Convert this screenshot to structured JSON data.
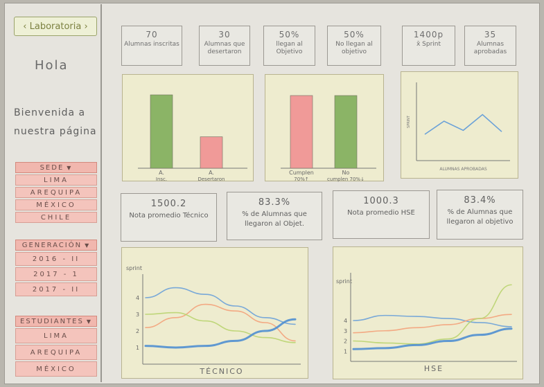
{
  "sidebar": {
    "brand": "Laboratoria",
    "greeting": "Hola",
    "welcome": "Bienvenida a nuestra página",
    "sede": {
      "title": "SEDE",
      "items": [
        "LIMA",
        "AREQUIPA",
        "MÉXICO",
        "CHILE"
      ]
    },
    "generacion": {
      "title": "GENERACIÓN",
      "items": [
        "2016 - II",
        "2017 - 1",
        "2017 - II"
      ]
    },
    "estudiantes": {
      "title": "ESTUDIANTES",
      "items": [
        "LIMA",
        "AREQUIPA",
        "MÉXICO"
      ]
    }
  },
  "kpis": [
    {
      "value": "70",
      "label": "Alumnas inscritas"
    },
    {
      "value": "30",
      "label": "Alumnas que desertaron"
    },
    {
      "value": "50%",
      "label": "llegan al Objetivo"
    },
    {
      "value": "50%",
      "label": "No llegan al objetivo"
    },
    {
      "value": "1400p",
      "label": "x̄ Sprint"
    },
    {
      "value": "35",
      "label": "Alumnas aprobadas"
    }
  ],
  "stats": [
    {
      "value": "1500.2",
      "label": "Nota promedio Técnico"
    },
    {
      "value": "83.3%",
      "label": "% de Alumnas que llegaron al Objet."
    },
    {
      "value": "1000.3",
      "label": "Nota promedio HSE"
    },
    {
      "value": "83.4%",
      "label": "% de Alumnas que llegaron al objetivo"
    }
  ],
  "colors": {
    "green": "#8bb466",
    "red": "#f09a98",
    "blue": "#6aa1d8",
    "lightgreen": "#b9d46f",
    "orange": "#f3a27a"
  },
  "chart_data": [
    {
      "type": "bar",
      "categories": [
        "A. Insc.",
        "A. Desertaron"
      ],
      "values": [
        70,
        30
      ]
    },
    {
      "type": "bar",
      "categories": [
        "Cumplen 70%↑",
        "No cumplen 70%↓"
      ],
      "values": [
        50,
        50
      ]
    },
    {
      "type": "line",
      "xlabel": "ALUMNAS APROBADAS",
      "ylabel": "SPRINT",
      "x": [
        1,
        2,
        3,
        4,
        5
      ],
      "values": [
        2,
        3,
        2.3,
        3.5,
        2.2
      ]
    },
    {
      "type": "line",
      "xlabel": "TÉCNICO",
      "ylabel": "sprint",
      "yticks": [
        "1",
        "2",
        "3",
        "4"
      ],
      "x": [
        0,
        1,
        2,
        3,
        4,
        5
      ],
      "series": [
        {
          "values": [
            4,
            4.6,
            4.2,
            3.5,
            2.8,
            2.4
          ]
        },
        {
          "values": [
            2.2,
            2.8,
            3.6,
            3.2,
            2.5,
            1.4
          ]
        },
        {
          "values": [
            3,
            3.1,
            2.6,
            2.0,
            1.6,
            1.3
          ]
        },
        {
          "values": [
            1.1,
            1.0,
            1.1,
            1.4,
            2.0,
            2.7
          ]
        }
      ]
    },
    {
      "type": "line",
      "xlabel": "HSE",
      "ylabel": "sprint",
      "yticks": [
        "1",
        "2",
        "3",
        "4"
      ],
      "x": [
        0,
        1,
        2,
        3,
        4,
        5
      ],
      "series": [
        {
          "values": [
            4,
            4.5,
            4.4,
            4.2,
            3.8,
            3.4
          ]
        },
        {
          "values": [
            2.8,
            3.0,
            3.3,
            3.6,
            4.2,
            4.6
          ]
        },
        {
          "values": [
            2.0,
            1.8,
            1.7,
            2.2,
            4.2,
            7.5
          ]
        },
        {
          "values": [
            1.2,
            1.3,
            1.6,
            2.0,
            2.6,
            3.2
          ]
        }
      ]
    }
  ]
}
